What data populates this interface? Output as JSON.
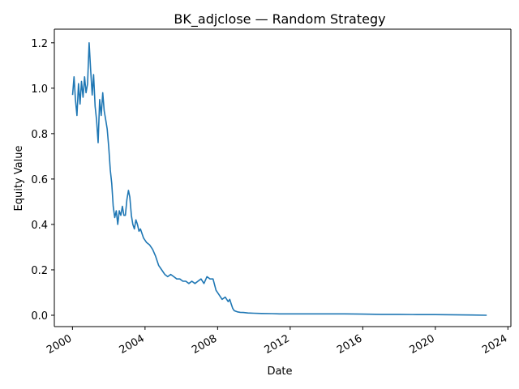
{
  "chart_data": {
    "type": "line",
    "title": "BK_adjclose — Random Strategy",
    "xlabel": "Date",
    "ylabel": "Equity Value",
    "xlim": [
      "1999-01-01",
      "2024-03-01"
    ],
    "ylim": [
      -0.05,
      1.26
    ],
    "x_ticks": [
      "2000",
      "2004",
      "2008",
      "2012",
      "2016",
      "2020",
      "2024"
    ],
    "y_ticks": [
      "0.0",
      "0.2",
      "0.4",
      "0.6",
      "0.8",
      "1.0",
      "1.2"
    ],
    "grid": false,
    "line_color": "#1f77b4",
    "series": [
      {
        "x": [
          "2000-01-03",
          "2000-02-01",
          "2000-03-01",
          "2000-04-01",
          "2000-05-01",
          "2000-06-01",
          "2000-07-01",
          "2000-08-01",
          "2000-09-01",
          "2000-10-01",
          "2000-11-01",
          "2000-12-01",
          "2001-01-01",
          "2001-02-01",
          "2001-03-01",
          "2001-04-01",
          "2001-05-01",
          "2001-06-01",
          "2001-07-01",
          "2001-08-01",
          "2001-09-01",
          "2001-10-01",
          "2001-11-01",
          "2001-12-01",
          "2002-01-01",
          "2002-02-01",
          "2002-03-01",
          "2002-04-01",
          "2002-05-01",
          "2002-06-01",
          "2002-07-01",
          "2002-08-01",
          "2002-09-01",
          "2002-10-01",
          "2002-11-01",
          "2002-12-01",
          "2003-01-01",
          "2003-02-01",
          "2003-03-01",
          "2003-04-01",
          "2003-05-01",
          "2003-06-01",
          "2003-07-01",
          "2003-08-01",
          "2003-09-01",
          "2003-10-01",
          "2003-11-01",
          "2003-12-01",
          "2004-02-01",
          "2004-04-01",
          "2004-06-01",
          "2004-08-01",
          "2004-10-01",
          "2004-12-01",
          "2005-02-01",
          "2005-04-01",
          "2005-06-01",
          "2005-08-01",
          "2005-10-01",
          "2005-12-01",
          "2006-02-01",
          "2006-04-01",
          "2006-06-01",
          "2006-08-01",
          "2006-10-01",
          "2006-12-01",
          "2007-02-01",
          "2007-04-01",
          "2007-06-01",
          "2007-08-01",
          "2007-10-01",
          "2007-12-01",
          "2008-02-01",
          "2008-04-01",
          "2008-06-01",
          "2008-08-01",
          "2008-09-01",
          "2008-10-01",
          "2008-11-01",
          "2008-12-01",
          "2009-02-01",
          "2009-04-01",
          "2009-06-01",
          "2009-09-01",
          "2010-01-01",
          "2010-06-01",
          "2011-01-01",
          "2011-06-01",
          "2012-01-01",
          "2012-06-01",
          "2013-01-01",
          "2014-01-01",
          "2015-01-01",
          "2016-01-01",
          "2017-01-01",
          "2018-01-01",
          "2019-01-01",
          "2020-01-01",
          "2021-01-01",
          "2022-01-01",
          "2022-11-01"
        ],
        "y": [
          0.97,
          1.05,
          0.95,
          0.88,
          1.02,
          0.93,
          1.03,
          0.96,
          1.05,
          0.98,
          1.02,
          1.2,
          1.08,
          0.97,
          1.06,
          0.92,
          0.86,
          0.76,
          0.95,
          0.88,
          0.98,
          0.9,
          0.86,
          0.82,
          0.74,
          0.64,
          0.58,
          0.48,
          0.43,
          0.46,
          0.4,
          0.46,
          0.44,
          0.48,
          0.44,
          0.44,
          0.51,
          0.55,
          0.52,
          0.44,
          0.4,
          0.38,
          0.42,
          0.4,
          0.37,
          0.38,
          0.36,
          0.34,
          0.32,
          0.31,
          0.29,
          0.26,
          0.22,
          0.2,
          0.18,
          0.17,
          0.18,
          0.17,
          0.16,
          0.16,
          0.15,
          0.15,
          0.14,
          0.15,
          0.14,
          0.15,
          0.16,
          0.14,
          0.17,
          0.16,
          0.16,
          0.11,
          0.09,
          0.07,
          0.08,
          0.06,
          0.07,
          0.05,
          0.03,
          0.02,
          0.015,
          0.013,
          0.012,
          0.01,
          0.009,
          0.008,
          0.007,
          0.006,
          0.006,
          0.006,
          0.006,
          0.006,
          0.006,
          0.005,
          0.004,
          0.004,
          0.003,
          0.003,
          0.002,
          0.001,
          0.0
        ]
      }
    ]
  }
}
